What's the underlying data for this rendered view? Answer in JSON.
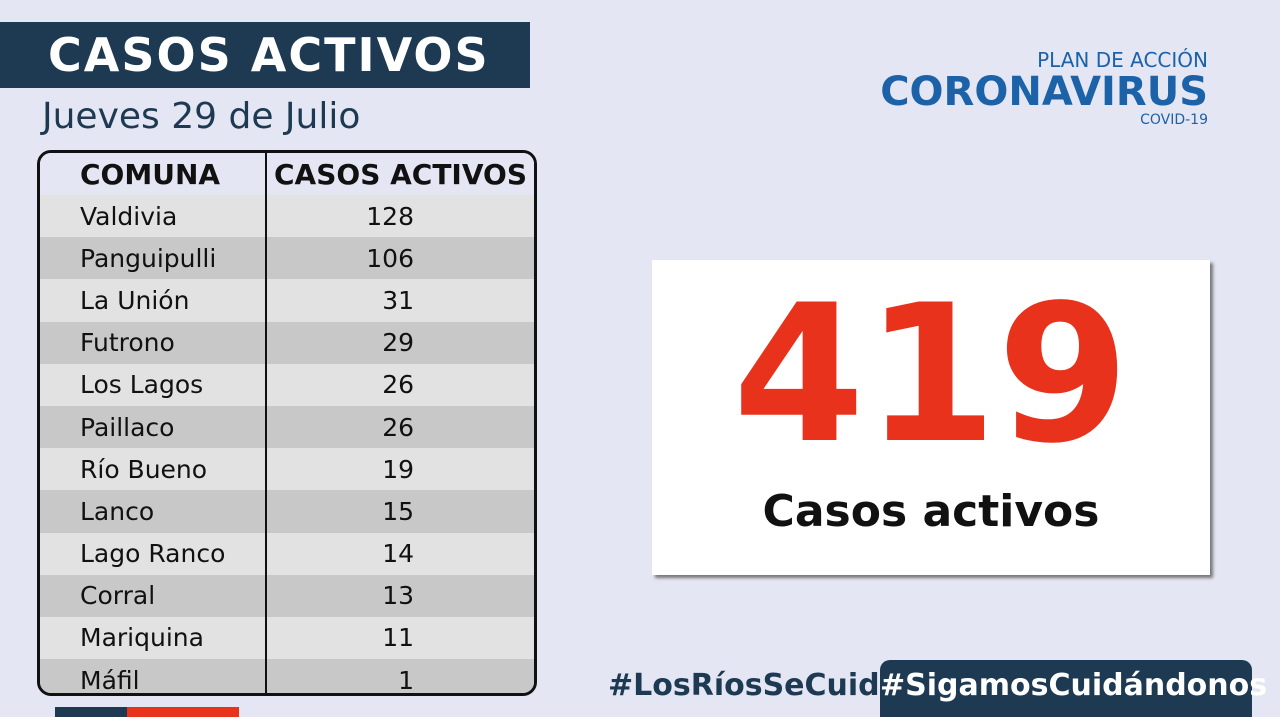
{
  "header": {
    "title": "CASOS ACTIVOS",
    "date": "Jueves 29 de Julio"
  },
  "logo": {
    "line1": "PLAN DE ACCIÓN",
    "line2": "CORONAVIRUS",
    "line3": "COVID-19"
  },
  "table": {
    "columns": [
      "COMUNA",
      "CASOS ACTIVOS"
    ],
    "rows": [
      [
        "Valdivia",
        "128"
      ],
      [
        "Panguipulli",
        "106"
      ],
      [
        "La Unión",
        "31"
      ],
      [
        "Futrono",
        "29"
      ],
      [
        "Los Lagos",
        "26"
      ],
      [
        "Paillaco",
        "26"
      ],
      [
        "Río Bueno",
        "19"
      ],
      [
        "Lanco",
        "15"
      ],
      [
        "Lago Ranco",
        "14"
      ],
      [
        "Corral",
        "13"
      ],
      [
        "Mariquina",
        "11"
      ],
      [
        "Máfil",
        "1"
      ]
    ]
  },
  "total": {
    "value": "419",
    "label": "Casos activos"
  },
  "hashtags": [
    "#LosRíosSeCuida",
    "#SigamosCuidándonos"
  ]
}
